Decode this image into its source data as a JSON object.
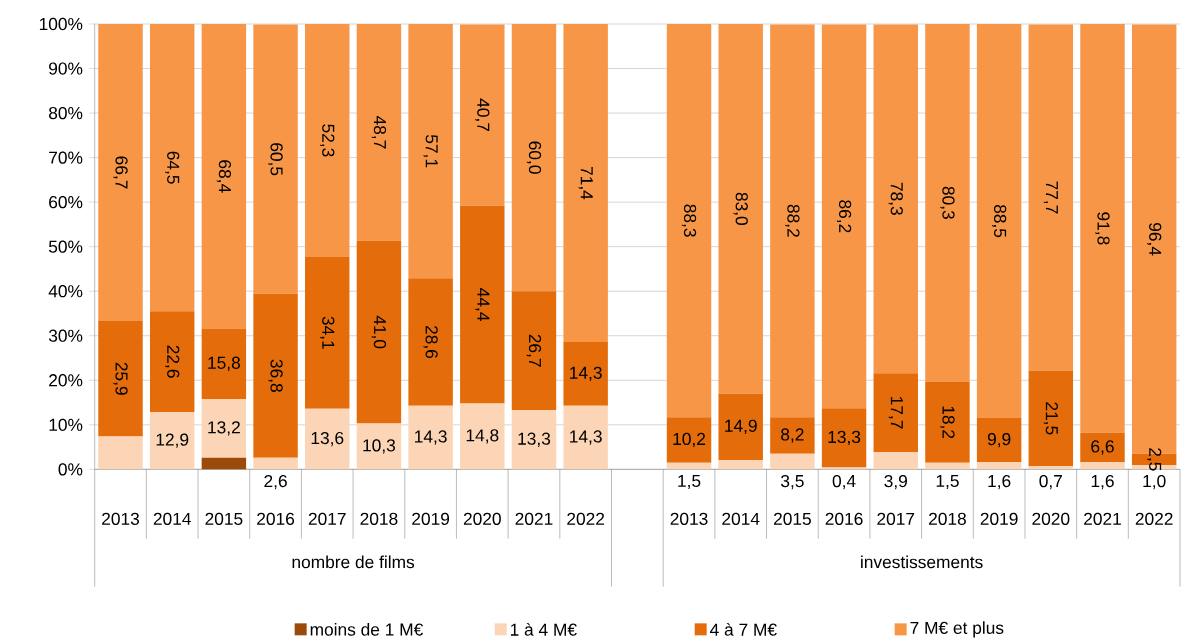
{
  "chart_data": {
    "type": "bar",
    "stacked": true,
    "categories": [
      "2013",
      "2014",
      "2015",
      "2016",
      "2017",
      "2018",
      "2019",
      "2020",
      "2021",
      "2022",
      null,
      "2013",
      "2014",
      "2015",
      "2016",
      "2017",
      "2018",
      "2019",
      "2020",
      "2021",
      "2022"
    ],
    "annotations": [
      "nombre de films",
      "investissements"
    ],
    "series": [
      {
        "name": "moins de 1 M€",
        "color": "#9c4a0a",
        "values": [
          0,
          0,
          2.6,
          0,
          0,
          0,
          0,
          0,
          0,
          0,
          null,
          0,
          0,
          0,
          0,
          0,
          0,
          0,
          0,
          0,
          0
        ],
        "value_labels": [
          null,
          null,
          null,
          null,
          null,
          null,
          null,
          null,
          null,
          null,
          null,
          null,
          null,
          null,
          null,
          null,
          null,
          null,
          null,
          null,
          null
        ]
      },
      {
        "name": "1 à 4 M€",
        "color": "#fbd5b5",
        "values": [
          7.4,
          12.9,
          13.2,
          2.6,
          13.6,
          10.3,
          14.3,
          14.8,
          13.3,
          14.3,
          null,
          1.5,
          2.1,
          3.5,
          0.4,
          3.9,
          1.5,
          1.6,
          0.7,
          1.6,
          1.0
        ],
        "value_labels": [
          null,
          "12,9",
          "13,2",
          "2,6",
          "13,6",
          "10,3",
          "14,3",
          "14,8",
          "13,3",
          "14,3",
          null,
          "1,5",
          null,
          "3,5",
          "0,4",
          "3,9",
          "1,5",
          "1,6",
          "0,7",
          "1,6",
          "1,0"
        ]
      },
      {
        "name": "4 à 7 M€",
        "color": "#e46c0a",
        "values": [
          25.9,
          22.6,
          15.8,
          36.8,
          34.1,
          41.0,
          28.6,
          44.4,
          26.7,
          14.3,
          null,
          10.2,
          14.9,
          8.2,
          13.3,
          17.7,
          18.2,
          9.9,
          21.5,
          6.6,
          2.5
        ],
        "value_labels": [
          "25,9",
          "22,6",
          "15,8",
          "36,8",
          "34,1",
          "41,0",
          "28,6",
          "44,4",
          "26,7",
          "14,3",
          null,
          "10,2",
          "14,9",
          "8,2",
          "13,3",
          "17,7",
          "18,2",
          "9,9",
          "21,5",
          "6,6",
          "2,5"
        ]
      },
      {
        "name": "7 M€ et plus",
        "color": "#f79646",
        "values": [
          66.7,
          64.5,
          68.4,
          60.5,
          52.3,
          48.7,
          57.1,
          40.7,
          60.0,
          71.4,
          null,
          88.3,
          83.0,
          88.2,
          86.2,
          78.3,
          80.3,
          88.5,
          77.7,
          91.8,
          96.4
        ],
        "value_labels": [
          "66,7",
          "64,5",
          "68,4",
          "60,5",
          "52,3",
          "48,7",
          "57,1",
          "40,7",
          "60,0",
          "71,4",
          null,
          "88,3",
          "83,0",
          "88,2",
          "86,2",
          "78,3",
          "80,3",
          "88,5",
          "77,7",
          "91,8",
          "96,4"
        ]
      }
    ],
    "ylim": [
      0,
      100
    ],
    "yticks": [
      {
        "value": 0,
        "label": "0%"
      },
      {
        "value": 10,
        "label": "10%"
      },
      {
        "value": 20,
        "label": "20%"
      },
      {
        "value": 30,
        "label": "30%"
      },
      {
        "value": 40,
        "label": "40%"
      },
      {
        "value": 50,
        "label": "50%"
      },
      {
        "value": 60,
        "label": "60%"
      },
      {
        "value": 70,
        "label": "70%"
      },
      {
        "value": 80,
        "label": "80%"
      },
      {
        "value": 90,
        "label": "90%"
      },
      {
        "value": 100,
        "label": "100%"
      }
    ],
    "grid": "y",
    "legend": "bottom"
  }
}
